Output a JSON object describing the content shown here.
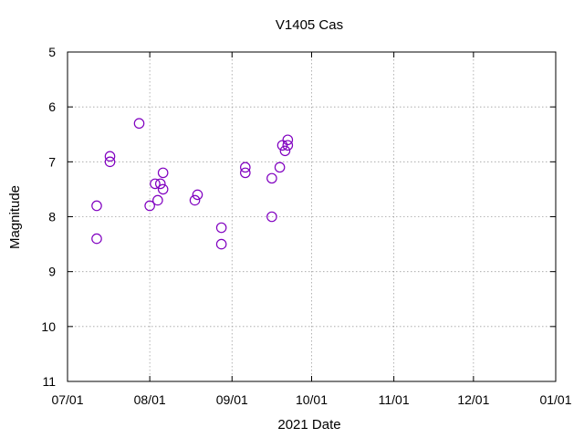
{
  "chart_data": {
    "type": "scatter",
    "title": "V1405 Cas",
    "xlabel": "2021 Date",
    "ylabel": "Magnitude",
    "x_ticks": [
      "07/01",
      "08/01",
      "09/01",
      "10/01",
      "11/01",
      "12/01",
      "01/01"
    ],
    "x_range": [
      "2021-07-01",
      "2022-01-01"
    ],
    "y_ticks": [
      5,
      6,
      7,
      8,
      9,
      10,
      11
    ],
    "ylim": [
      11,
      5
    ],
    "y_inverted": true,
    "grid": true,
    "marker": "open-circle",
    "marker_color": "#8000c0",
    "points": [
      {
        "x": "2021-07-12",
        "y": 7.8
      },
      {
        "x": "2021-07-12",
        "y": 8.4
      },
      {
        "x": "2021-07-17",
        "y": 6.9
      },
      {
        "x": "2021-07-17",
        "y": 7.0
      },
      {
        "x": "2021-07-28",
        "y": 6.3
      },
      {
        "x": "2021-08-01",
        "y": 7.8
      },
      {
        "x": "2021-08-03",
        "y": 7.4
      },
      {
        "x": "2021-08-04",
        "y": 7.7
      },
      {
        "x": "2021-08-05",
        "y": 7.4
      },
      {
        "x": "2021-08-06",
        "y": 7.2
      },
      {
        "x": "2021-08-06",
        "y": 7.5
      },
      {
        "x": "2021-08-18",
        "y": 7.7
      },
      {
        "x": "2021-08-19",
        "y": 7.6
      },
      {
        "x": "2021-08-28",
        "y": 8.2
      },
      {
        "x": "2021-08-28",
        "y": 8.5
      },
      {
        "x": "2021-09-06",
        "y": 7.1
      },
      {
        "x": "2021-09-06",
        "y": 7.2
      },
      {
        "x": "2021-09-16",
        "y": 7.3
      },
      {
        "x": "2021-09-16",
        "y": 8.0
      },
      {
        "x": "2021-09-19",
        "y": 7.1
      },
      {
        "x": "2021-09-20",
        "y": 6.7
      },
      {
        "x": "2021-09-21",
        "y": 6.8
      },
      {
        "x": "2021-09-22",
        "y": 6.6
      },
      {
        "x": "2021-09-22",
        "y": 6.7
      }
    ]
  }
}
